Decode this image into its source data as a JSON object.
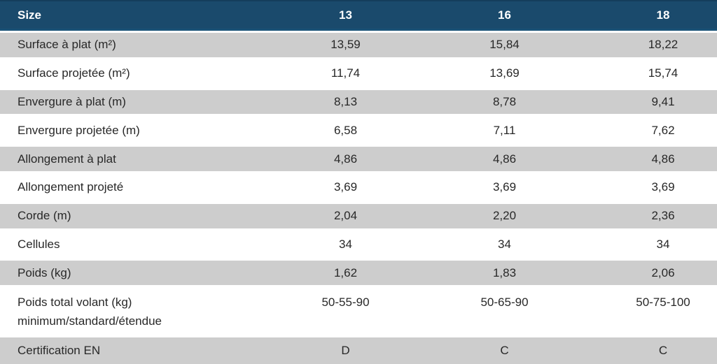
{
  "table": {
    "header": {
      "label": "Size",
      "columns": [
        "13",
        "16",
        "18"
      ]
    },
    "rows": [
      {
        "label": "Surface à plat (m²)",
        "values": [
          "13,59",
          "15,84",
          "18,22"
        ]
      },
      {
        "label": "Surface projetée (m²)",
        "values": [
          "11,74",
          "13,69",
          "15,74"
        ]
      },
      {
        "label": "Envergure à plat (m)",
        "values": [
          "8,13",
          "8,78",
          "9,41"
        ]
      },
      {
        "label": "Envergure projetée (m)",
        "values": [
          "6,58",
          "7,11",
          "7,62"
        ]
      },
      {
        "label": "Allongement à plat",
        "values": [
          "4,86",
          "4,86",
          "4,86"
        ]
      },
      {
        "label": "Allongement projeté",
        "values": [
          "3,69",
          "3,69",
          "3,69"
        ]
      },
      {
        "label": "Corde (m)",
        "values": [
          "2,04",
          "2,20",
          "2,36"
        ]
      },
      {
        "label": "Cellules",
        "values": [
          "34",
          "34",
          "34"
        ]
      },
      {
        "label": "Poids (kg)",
        "values": [
          "1,62",
          "1,83",
          "2,06"
        ]
      },
      {
        "label": "Poids total volant (kg)",
        "label_line2": "minimum/standard/étendue",
        "values": [
          "50-55-90",
          "50-65-90",
          "50-75-100"
        ]
      },
      {
        "label": "Certification EN",
        "values": [
          "D",
          "C",
          "C"
        ]
      }
    ]
  },
  "colors": {
    "header_bg": "#1A4A6C",
    "header_border_top": "#143E5C",
    "header_border_bottom": "#1A5276",
    "header_text": "#FFFFFF",
    "shaded_row_bg": "#CDCDCD",
    "plain_row_bg": "#FFFFFF",
    "cell_text": "#282828"
  }
}
